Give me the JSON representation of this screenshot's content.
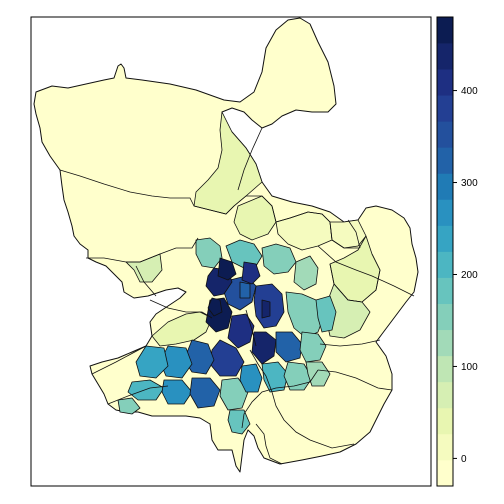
{
  "map": {
    "legend": {
      "ticks": [
        "0",
        "100",
        "200",
        "300",
        "400"
      ],
      "tick_values": [
        0,
        100,
        200,
        300,
        400
      ],
      "range": [
        -30,
        480
      ],
      "colors": [
        "#FFFFCC",
        "#F5FBBF",
        "#E8F6B1",
        "#D6EFB3",
        "#BFE6B4",
        "#A2DAB8",
        "#84CFBA",
        "#67C4BE",
        "#4CB6C2",
        "#36A4C3",
        "#2991C0",
        "#207BB5",
        "#2262A8",
        "#23509D",
        "#233F93",
        "#1E2F82",
        "#15256A",
        "#0C1C52"
      ]
    }
  }
}
